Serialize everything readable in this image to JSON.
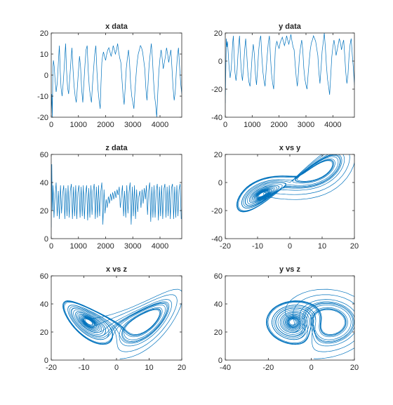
{
  "style": {
    "line_color": "#0072BD",
    "axes_color": "#262626",
    "background": "#ffffff"
  },
  "chart_data": [
    {
      "type": "line",
      "title": "x data",
      "xlim": [
        0,
        4800
      ],
      "ylim": [
        -20,
        20
      ],
      "xticks": [
        "0",
        "1000",
        "2000",
        "3000",
        "4000"
      ],
      "yticks": [
        "-20",
        "-10",
        "0",
        "10",
        "20"
      ],
      "grid": false,
      "series": [
        {
          "x": [
            0,
            20,
            40,
            60,
            80,
            110,
            140,
            180,
            220,
            250,
            270,
            300,
            330,
            360,
            400,
            440,
            470,
            500,
            530,
            560,
            600,
            640,
            680,
            720,
            760,
            800,
            840,
            880,
            920,
            960,
            1000,
            1040,
            1080,
            1120,
            1160,
            1200,
            1240,
            1280,
            1320,
            1360,
            1400,
            1440,
            1480,
            1520,
            1560,
            1600,
            1640,
            1680,
            1720,
            1760,
            1800,
            1830,
            1860,
            1890,
            1920,
            1960,
            2000,
            2040,
            2080,
            2120,
            2160,
            2200,
            2240,
            2280,
            2320,
            2360,
            2400,
            2440,
            2480,
            2520,
            2560,
            2600,
            2640,
            2680,
            2720,
            2760,
            2800,
            2840,
            2880,
            2920,
            2960,
            3000,
            3040,
            3080,
            3120,
            3160,
            3200,
            3240,
            3280,
            3320,
            3360,
            3400,
            3440,
            3480,
            3520,
            3560,
            3600,
            3640,
            3680,
            3720,
            3760,
            3800,
            3840,
            3880,
            3920,
            3960,
            4000,
            4040,
            4080,
            4120,
            4160,
            4200,
            4240,
            4280,
            4320,
            4360,
            4400,
            4440,
            4480,
            4520,
            4560,
            4600,
            4640,
            4680,
            4720,
            4760,
            4800
          ],
          "y": [
            -18,
            -9,
            -20,
            2,
            7,
            4,
            -2,
            -8,
            -4,
            3,
            8,
            14,
            2,
            -6,
            -10,
            -4,
            2,
            9,
            15,
            3,
            -6,
            -9,
            -2,
            6,
            13,
            3,
            -5,
            -10,
            -13,
            -6,
            2,
            9,
            4,
            -7,
            -13,
            -4,
            5,
            12,
            14,
            2,
            -6,
            -10,
            -13,
            -4,
            3,
            10,
            14,
            2,
            -7,
            -12,
            -16,
            -4,
            6,
            9,
            11,
            9,
            7,
            10,
            12,
            13,
            11,
            9,
            11,
            14,
            12,
            10,
            12,
            15,
            11,
            8,
            6,
            -2,
            -9,
            -14,
            -6,
            3,
            8,
            12,
            6,
            -4,
            -10,
            -13,
            -16,
            -7,
            0,
            6,
            10,
            12,
            14,
            13,
            11,
            7,
            3,
            -6,
            -12,
            -4,
            5,
            10,
            15,
            8,
            -2,
            -10,
            -14,
            -20,
            -8,
            2,
            8,
            12,
            8,
            3,
            6,
            9,
            13,
            10,
            6,
            9,
            12,
            3,
            -6,
            -12,
            -8,
            2,
            9,
            13,
            4,
            -4,
            -9
          ]
        }
      ]
    },
    {
      "type": "line",
      "title": "y data",
      "xlim": [
        0,
        4800
      ],
      "ylim": [
        -40,
        20
      ],
      "xticks": [
        "0",
        "1000",
        "2000",
        "3000",
        "4000"
      ],
      "yticks": [
        "-40",
        "-20",
        "0",
        "20"
      ],
      "grid": false,
      "series": [
        {
          "x": [
            0,
            20,
            40,
            60,
            80,
            110,
            140,
            180,
            220,
            250,
            270,
            300,
            330,
            360,
            400,
            440,
            470,
            500,
            530,
            560,
            600,
            640,
            680,
            720,
            760,
            800,
            840,
            880,
            920,
            960,
            1000,
            1040,
            1080,
            1120,
            1160,
            1200,
            1240,
            1280,
            1320,
            1360,
            1400,
            1440,
            1480,
            1520,
            1560,
            1600,
            1640,
            1680,
            1720,
            1760,
            1800,
            1830,
            1860,
            1890,
            1920,
            1960,
            2000,
            2040,
            2080,
            2120,
            2160,
            2200,
            2240,
            2280,
            2320,
            2360,
            2400,
            2440,
            2480,
            2520,
            2560,
            2600,
            2640,
            2680,
            2720,
            2760,
            2800,
            2840,
            2880,
            2920,
            2960,
            3000,
            3040,
            3080,
            3120,
            3160,
            3200,
            3240,
            3280,
            3320,
            3360,
            3400,
            3440,
            3480,
            3520,
            3560,
            3600,
            3640,
            3680,
            3720,
            3760,
            3800,
            3840,
            3880,
            3920,
            3960,
            4000,
            4040,
            4080,
            4120,
            4160,
            4200,
            4240,
            4280,
            4320,
            4360,
            4400,
            4440,
            4480,
            4520,
            4560,
            4600,
            4640,
            4680,
            4720,
            4760,
            4800
          ],
          "y": [
            -30,
            -5,
            16,
            10,
            14,
            6,
            -4,
            -12,
            -6,
            4,
            12,
            18,
            4,
            -8,
            -14,
            -6,
            4,
            12,
            18,
            4,
            -8,
            -14,
            -4,
            8,
            16,
            4,
            -8,
            -15,
            -18,
            -8,
            4,
            12,
            5,
            -9,
            -17,
            -6,
            7,
            15,
            18,
            3,
            -8,
            -14,
            -18,
            -6,
            4,
            13,
            18,
            3,
            -9,
            -16,
            -20,
            -6,
            8,
            12,
            14,
            11,
            9,
            13,
            15,
            17,
            14,
            11,
            14,
            18,
            15,
            12,
            15,
            19,
            14,
            10,
            8,
            -3,
            -12,
            -18,
            -8,
            4,
            10,
            15,
            8,
            -5,
            -13,
            -17,
            -20,
            -9,
            0,
            8,
            13,
            15,
            18,
            16,
            14,
            9,
            4,
            -8,
            -16,
            -5,
            7,
            13,
            20,
            10,
            -3,
            -13,
            -18,
            -24,
            -10,
            3,
            10,
            15,
            10,
            4,
            8,
            12,
            16,
            13,
            8,
            12,
            15,
            4,
            -8,
            -16,
            -10,
            3,
            12,
            16,
            5,
            -5,
            -17
          ]
        }
      ]
    },
    {
      "type": "line",
      "title": "z data",
      "xlim": [
        0,
        4800
      ],
      "ylim": [
        0,
        60
      ],
      "xticks": [
        "0",
        "1000",
        "2000",
        "3000",
        "4000"
      ],
      "yticks": [
        "0",
        "20",
        "40",
        "60"
      ],
      "grid": false,
      "series": [
        {
          "x": [
            0,
            20,
            40,
            70,
            100,
            140,
            180,
            220,
            260,
            300,
            340,
            380,
            420,
            460,
            500,
            540,
            580,
            620,
            660,
            700,
            740,
            780,
            820,
            860,
            900,
            940,
            980,
            1020,
            1060,
            1100,
            1140,
            1180,
            1220,
            1260,
            1300,
            1340,
            1380,
            1420,
            1460,
            1500,
            1540,
            1580,
            1620,
            1660,
            1700,
            1740,
            1780,
            1820,
            1860,
            1900,
            1940,
            1980,
            2020,
            2060,
            2100,
            2140,
            2180,
            2220,
            2260,
            2300,
            2340,
            2380,
            2420,
            2460,
            2500,
            2540,
            2580,
            2620,
            2660,
            2700,
            2740,
            2780,
            2820,
            2860,
            2900,
            2940,
            2980,
            3020,
            3060,
            3100,
            3140,
            3180,
            3220,
            3260,
            3300,
            3340,
            3380,
            3420,
            3460,
            3500,
            3540,
            3580,
            3620,
            3660,
            3700,
            3740,
            3780,
            3820,
            3860,
            3900,
            3940,
            3980,
            4020,
            4060,
            4100,
            4140,
            4180,
            4220,
            4260,
            4300,
            4340,
            4380,
            4420,
            4460,
            4500,
            4540,
            4580,
            4620,
            4660,
            4700,
            4740,
            4780
          ],
          "y": [
            8,
            53,
            20,
            38,
            15,
            30,
            40,
            16,
            34,
            14,
            38,
            18,
            32,
            38,
            14,
            36,
            16,
            38,
            15,
            34,
            39,
            14,
            37,
            16,
            38,
            14,
            33,
            38,
            15,
            37,
            16,
            38,
            14,
            32,
            38,
            13,
            36,
            15,
            38,
            17,
            34,
            39,
            14,
            37,
            15,
            38,
            16,
            33,
            40,
            10,
            35,
            18,
            28,
            22,
            30,
            25,
            32,
            27,
            33,
            28,
            34,
            29,
            35,
            31,
            37,
            22,
            30,
            38,
            16,
            34,
            15,
            38,
            18,
            33,
            40,
            10,
            37,
            16,
            38,
            14,
            35,
            19,
            30,
            34,
            22,
            35,
            25,
            36,
            28,
            38,
            17,
            34,
            40,
            12,
            37,
            15,
            38,
            15,
            34,
            39,
            13,
            37,
            16,
            38,
            14,
            35,
            39,
            15,
            37,
            16,
            38,
            14,
            36,
            39,
            14,
            37,
            15,
            38,
            16,
            35,
            39,
            14
          ]
        }
      ]
    },
    {
      "type": "line",
      "title": "x vs y",
      "xlim": [
        -20,
        20
      ],
      "ylim": [
        -40,
        20
      ],
      "xticks": [
        "-20",
        "-10",
        "0",
        "10",
        "20"
      ],
      "yticks": [
        "-40",
        "-20",
        "0",
        "20"
      ],
      "grid": false,
      "series": [
        {
          "attractor": "xy"
        }
      ]
    },
    {
      "type": "line",
      "title": "x vs z",
      "xlim": [
        -20,
        20
      ],
      "ylim": [
        0,
        60
      ],
      "xticks": [
        "-20",
        "-10",
        "0",
        "10",
        "20"
      ],
      "yticks": [
        "0",
        "20",
        "40",
        "60"
      ],
      "grid": false,
      "series": [
        {
          "attractor": "xz"
        }
      ]
    },
    {
      "type": "line",
      "title": "y vs z",
      "xlim": [
        -40,
        20
      ],
      "ylim": [
        0,
        60
      ],
      "xticks": [
        "-40",
        "-20",
        "0",
        "20"
      ],
      "yticks": [
        "0",
        "20",
        "40",
        "60"
      ],
      "grid": false,
      "series": [
        {
          "attractor": "yz"
        }
      ]
    }
  ]
}
